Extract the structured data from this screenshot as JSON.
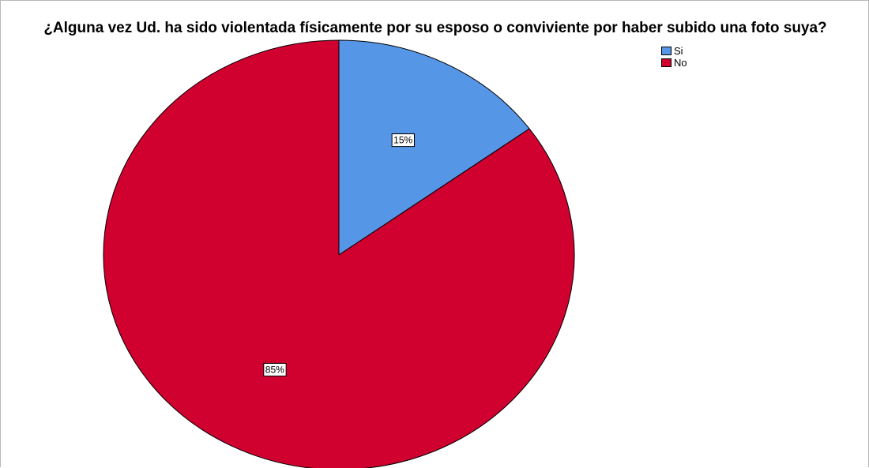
{
  "chart_data": {
    "type": "pie",
    "title": "¿Alguna vez Ud. ha sido violentada físicamente por su esposo o conviviente por haber subido una foto suya?",
    "categories": [
      "Si",
      "No"
    ],
    "values": [
      15,
      85
    ],
    "data_labels": [
      "15%",
      "85%"
    ],
    "colors": [
      "#5596e6",
      "#d0002f"
    ],
    "legend_position": "top-right"
  }
}
